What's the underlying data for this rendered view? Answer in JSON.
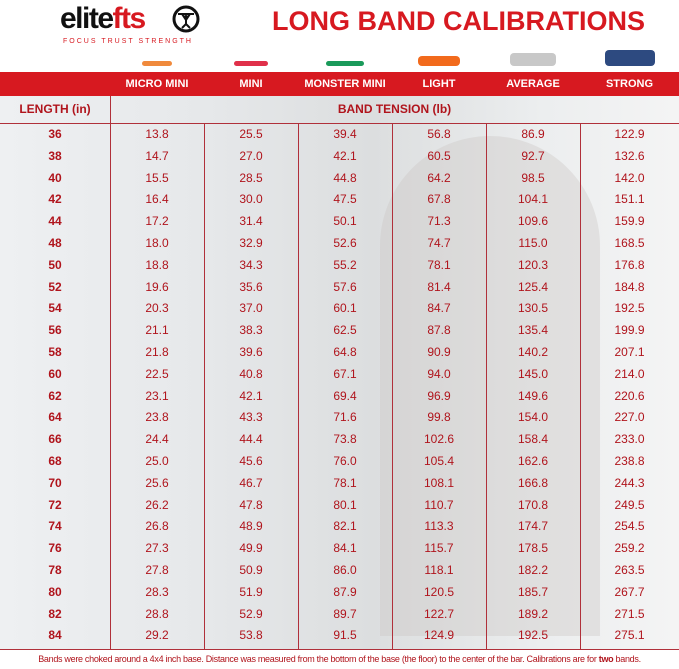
{
  "brand": {
    "logo_text": "elitefts",
    "tagline": "FOCUS TRUST STRENGTH"
  },
  "title": "LONG BAND CALIBRATIONS",
  "bands": [
    {
      "name": "MICRO MINI",
      "color": "#f08a3c"
    },
    {
      "name": "MINI",
      "color": "#e0304a"
    },
    {
      "name": "MONSTER MINI",
      "color": "#1a9a5a"
    },
    {
      "name": "LIGHT",
      "color": "#f26a1c"
    },
    {
      "name": "AVERAGE",
      "color": "#c8c8c8"
    },
    {
      "name": "STRONG",
      "color": "#2d4a80"
    }
  ],
  "length_header": "LENGTH (in)",
  "tension_header": "BAND TENSION (lb)",
  "rows": [
    [
      "36",
      "13.8",
      "25.5",
      "39.4",
      "56.8",
      "86.9",
      "122.9"
    ],
    [
      "38",
      "14.7",
      "27.0",
      "42.1",
      "60.5",
      "92.7",
      "132.6"
    ],
    [
      "40",
      "15.5",
      "28.5",
      "44.8",
      "64.2",
      "98.5",
      "142.0"
    ],
    [
      "42",
      "16.4",
      "30.0",
      "47.5",
      "67.8",
      "104.1",
      "151.1"
    ],
    [
      "44",
      "17.2",
      "31.4",
      "50.1",
      "71.3",
      "109.6",
      "159.9"
    ],
    [
      "48",
      "18.0",
      "32.9",
      "52.6",
      "74.7",
      "115.0",
      "168.5"
    ],
    [
      "50",
      "18.8",
      "34.3",
      "55.2",
      "78.1",
      "120.3",
      "176.8"
    ],
    [
      "52",
      "19.6",
      "35.6",
      "57.6",
      "81.4",
      "125.4",
      "184.8"
    ],
    [
      "54",
      "20.3",
      "37.0",
      "60.1",
      "84.7",
      "130.5",
      "192.5"
    ],
    [
      "56",
      "21.1",
      "38.3",
      "62.5",
      "87.8",
      "135.4",
      "199.9"
    ],
    [
      "58",
      "21.8",
      "39.6",
      "64.8",
      "90.9",
      "140.2",
      "207.1"
    ],
    [
      "60",
      "22.5",
      "40.8",
      "67.1",
      "94.0",
      "145.0",
      "214.0"
    ],
    [
      "62",
      "23.1",
      "42.1",
      "69.4",
      "96.9",
      "149.6",
      "220.6"
    ],
    [
      "64",
      "23.8",
      "43.3",
      "71.6",
      "99.8",
      "154.0",
      "227.0"
    ],
    [
      "66",
      "24.4",
      "44.4",
      "73.8",
      "102.6",
      "158.4",
      "233.0"
    ],
    [
      "68",
      "25.0",
      "45.6",
      "76.0",
      "105.4",
      "162.6",
      "238.8"
    ],
    [
      "70",
      "25.6",
      "46.7",
      "78.1",
      "108.1",
      "166.8",
      "244.3"
    ],
    [
      "72",
      "26.2",
      "47.8",
      "80.1",
      "110.7",
      "170.8",
      "249.5"
    ],
    [
      "74",
      "26.8",
      "48.9",
      "82.1",
      "113.3",
      "174.7",
      "254.5"
    ],
    [
      "76",
      "27.3",
      "49.9",
      "84.1",
      "115.7",
      "178.5",
      "259.2"
    ],
    [
      "78",
      "27.8",
      "50.9",
      "86.0",
      "118.1",
      "182.2",
      "263.5"
    ],
    [
      "80",
      "28.3",
      "51.9",
      "87.9",
      "120.5",
      "185.7",
      "267.7"
    ],
    [
      "82",
      "28.8",
      "52.9",
      "89.7",
      "122.7",
      "189.2",
      "271.5"
    ],
    [
      "84",
      "29.2",
      "53.8",
      "91.5",
      "124.9",
      "192.5",
      "275.1"
    ]
  ],
  "footnote": {
    "text": "Bands were choked around a 4x4 inch base. Distance was measured from the bottom of the base (the floor) to the center of the bar. Calibrations are for ",
    "bold": "two",
    "end": " bands."
  }
}
